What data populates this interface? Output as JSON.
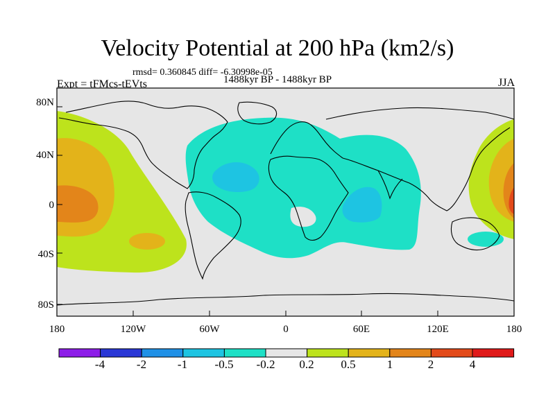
{
  "title": "Velocity Potential at 200 hPa (km2/s)",
  "stats": "rmsd= 0.360845 diff= -6.30998e-05",
  "experiment": "Expt = tFMcs-tEVts",
  "period": "1488kyr BP - 1488kyr BP",
  "season": "JJA",
  "lat_labels": [
    "80N",
    "40N",
    "0",
    "40S",
    "80S"
  ],
  "lon_labels": [
    "180",
    "120W",
    "60W",
    "0",
    "60E",
    "120E",
    "180"
  ],
  "colorbar": {
    "labels": [
      "-4",
      "-2",
      "-1",
      "-0.5",
      "-0.2",
      "0.2",
      "0.5",
      "1",
      "2",
      "4"
    ],
    "colors": [
      "#8d1de8",
      "#2a37d6",
      "#1f90e6",
      "#1ec4e2",
      "#1ee0c6",
      "#e6e6e6",
      "#bde31c",
      "#e3b31a",
      "#e3851a",
      "#e34a1a",
      "#e01a1a"
    ]
  },
  "colors": {
    "neutral": "#e6e6e6",
    "neg_02_05": "#1ee0c6",
    "neg_05_1": "#1ec4e2",
    "pos_02_05": "#bde31c",
    "pos_05_1": "#e3b31a",
    "pos_1_2": "#e3851a",
    "pos_2_4": "#e34a1a"
  }
}
